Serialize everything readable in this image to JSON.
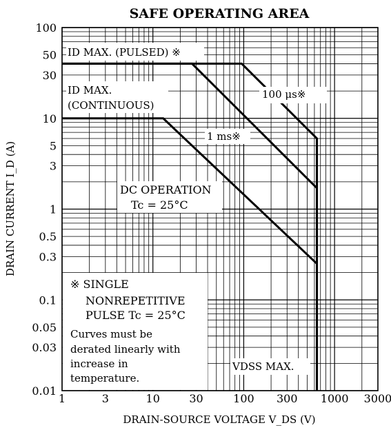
{
  "chart_data": {
    "type": "line",
    "title": "SAFE OPERATING AREA",
    "xlabel": "DRAIN-SOURCE VOLTAGE V_DS (V)",
    "ylabel": "DRAIN CURRENT I_D (A)",
    "xscale": "log",
    "yscale": "log",
    "xlim": [
      1,
      3000
    ],
    "ylim": [
      0.01,
      100
    ],
    "grid": true,
    "x_ticks": [
      "1",
      "3",
      "10",
      "30",
      "100",
      "300",
      "1000",
      "3000"
    ],
    "y_ticks": [
      "100",
      "50",
      "30",
      "10",
      "5",
      "3",
      "1",
      "0.5",
      "0.3",
      "0.1",
      "0.05",
      "0.03",
      "0.01"
    ],
    "series": [
      {
        "name": "100 μs※",
        "x": [
          1,
          95,
          640,
          640
        ],
        "y": [
          40,
          40,
          6,
          0.01
        ]
      },
      {
        "name": "1 ms※",
        "x": [
          1,
          27,
          640
        ],
        "y": [
          40,
          40,
          1.7
        ]
      },
      {
        "name": "DC OPERATION Tc = 25°C",
        "x": [
          1,
          13,
          640
        ],
        "y": [
          10,
          10,
          0.25
        ]
      }
    ],
    "annotations": [
      "ID MAX. (PULSED) ※",
      "ID MAX.",
      "(CONTINUOUS)",
      "100 μs※",
      "1 ms※",
      "DC OPERATION",
      "Tc = 25°C",
      "※ SINGLE",
      "NONREPETITIVE",
      "PULSE    Tc = 25°C",
      "Curves must be",
      "derated linearly with",
      "increase in",
      "temperature.",
      "VDSS MAX."
    ]
  }
}
